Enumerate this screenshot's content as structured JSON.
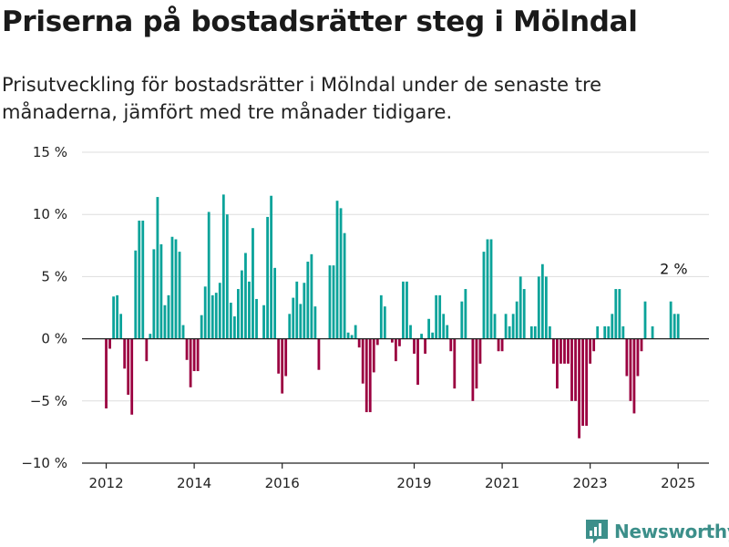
{
  "title": "Priserna på bostadsrätter steg i Mölndal",
  "subtitle": "Prisutveckling för bostadsrätter i Mölndal under de senaste tre månaderna, jämfört med tre månader tidigare.",
  "brand": {
    "name": "Newsworthy",
    "color": "#3c8f8a"
  },
  "colors": {
    "positive": "#0aa39a",
    "negative": "#9b0040",
    "grid": "#dddddd",
    "zero": "#222222"
  },
  "chart_data": {
    "type": "bar",
    "title": "Priserna på bostadsrätter steg i Mölndal",
    "xlabel": "",
    "ylabel": "",
    "ylim": [
      -10,
      15
    ],
    "yticks": [
      15,
      10,
      5,
      0,
      -5,
      -10
    ],
    "ytick_labels": [
      "15 %",
      "10 %",
      "5 %",
      "0 %",
      "−5 %",
      "−10 %"
    ],
    "xlim": [
      2011.45,
      2025.7
    ],
    "xticks": [
      2012,
      2014,
      2016,
      2019,
      2021,
      2023,
      2025
    ],
    "xtick_labels": [
      "2012",
      "2014",
      "2016",
      "2019",
      "2021",
      "2023",
      "2025"
    ],
    "grid": true,
    "annotation": {
      "text": "2 %",
      "x": 2024.9,
      "y": 2
    },
    "x": [
      2012.0,
      2012.083,
      2012.167,
      2012.25,
      2012.333,
      2012.417,
      2012.5,
      2012.583,
      2012.667,
      2012.75,
      2012.833,
      2012.917,
      2013.0,
      2013.083,
      2013.167,
      2013.25,
      2013.333,
      2013.417,
      2013.5,
      2013.583,
      2013.667,
      2013.75,
      2013.833,
      2013.917,
      2014.0,
      2014.083,
      2014.167,
      2014.25,
      2014.333,
      2014.417,
      2014.5,
      2014.583,
      2014.667,
      2014.75,
      2014.833,
      2014.917,
      2015.0,
      2015.083,
      2015.167,
      2015.25,
      2015.333,
      2015.417,
      2015.5,
      2015.583,
      2015.667,
      2015.75,
      2015.833,
      2015.917,
      2016.0,
      2016.083,
      2016.167,
      2016.25,
      2016.333,
      2016.417,
      2016.5,
      2016.583,
      2016.667,
      2016.75,
      2016.833,
      2016.917,
      2017.0,
      2017.083,
      2017.167,
      2017.25,
      2017.333,
      2017.417,
      2017.5,
      2017.583,
      2017.667,
      2017.75,
      2017.833,
      2017.917,
      2018.0,
      2018.083,
      2018.167,
      2018.25,
      2018.333,
      2018.417,
      2018.5,
      2018.583,
      2018.667,
      2018.75,
      2018.833,
      2018.917,
      2019.0,
      2019.083,
      2019.167,
      2019.25,
      2019.333,
      2019.417,
      2019.5,
      2019.583,
      2019.667,
      2019.75,
      2019.833,
      2019.917,
      2020.0,
      2020.083,
      2020.167,
      2020.25,
      2020.333,
      2020.417,
      2020.5,
      2020.583,
      2020.667,
      2020.75,
      2020.833,
      2020.917,
      2021.0,
      2021.083,
      2021.167,
      2021.25,
      2021.333,
      2021.417,
      2021.5,
      2021.583,
      2021.667,
      2021.75,
      2021.833,
      2021.917,
      2022.0,
      2022.083,
      2022.167,
      2022.25,
      2022.333,
      2022.417,
      2022.5,
      2022.583,
      2022.667,
      2022.75,
      2022.833,
      2022.917,
      2023.0,
      2023.083,
      2023.167,
      2023.25,
      2023.333,
      2023.417,
      2023.5,
      2023.583,
      2023.667,
      2023.75,
      2023.833,
      2023.917,
      2024.0,
      2024.083,
      2024.167,
      2024.25,
      2024.333,
      2024.417,
      2024.5,
      2024.583,
      2024.667,
      2024.75,
      2024.833,
      2024.917,
      2025.0
    ],
    "values": [
      -5.6,
      -0.8,
      3.4,
      3.5,
      2.0,
      -2.4,
      -4.5,
      -6.1,
      7.1,
      9.5,
      9.5,
      -1.8,
      0.4,
      7.2,
      11.4,
      7.6,
      2.7,
      3.5,
      8.2,
      8.0,
      7.0,
      1.1,
      -1.7,
      -3.9,
      -2.6,
      -2.6,
      1.9,
      4.2,
      10.2,
      3.5,
      3.7,
      4.5,
      11.6,
      10.0,
      2.9,
      1.8,
      4.0,
      5.5,
      6.9,
      4.6,
      8.9,
      3.2,
      0.0,
      2.7,
      9.8,
      11.5,
      5.7,
      -2.8,
      -4.4,
      -3.0,
      2.0,
      3.3,
      4.6,
      2.8,
      4.5,
      6.2,
      6.8,
      2.6,
      -2.5,
      0.0,
      0.0,
      5.9,
      5.9,
      11.1,
      10.5,
      8.5,
      0.5,
      0.3,
      1.1,
      -0.7,
      -3.6,
      -5.9,
      -5.9,
      -2.7,
      -0.5,
      3.5,
      2.6,
      0.0,
      -0.3,
      -1.8,
      -0.6,
      4.6,
      4.6,
      1.1,
      -1.2,
      -3.7,
      0.4,
      -1.2,
      1.6,
      0.5,
      3.5,
      3.5,
      2.0,
      1.1,
      -1.0,
      -4.0,
      0.0,
      3.0,
      4.0,
      0.0,
      -5.0,
      -4.0,
      -2.0,
      7.0,
      8.0,
      8.0,
      2.0,
      -1.0,
      -1.0,
      2.0,
      1.0,
      2.0,
      3.0,
      5.0,
      4.0,
      0.0,
      1.0,
      1.0,
      5.0,
      6.0,
      5.0,
      1.0,
      -2.0,
      -4.0,
      -2.0,
      -2.0,
      -2.0,
      -5.0,
      -5.0,
      -8.0,
      -7.0,
      -7.0,
      -2.0,
      -1.0,
      1.0,
      0.0,
      1.0,
      1.0,
      2.0,
      4.0,
      4.0,
      1.0,
      -3.0,
      -5.0,
      -6.0,
      -3.0,
      -1.0,
      3.0,
      0.0,
      1.0,
      0.0,
      0.0,
      0.0,
      0.0,
      3.0,
      2.0,
      2.0
    ]
  }
}
